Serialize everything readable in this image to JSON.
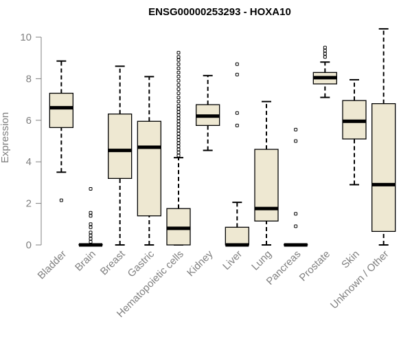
{
  "colors": {
    "box_fill": "#EEE8D2",
    "box_stroke": "#000000",
    "axis": "#808080",
    "label": "#808080",
    "title": "#000000"
  },
  "chart_data": {
    "type": "boxplot",
    "title": "ENSG00000253293 - HOXA10",
    "xlabel": "",
    "ylabel": "Expression",
    "ylim": [
      0,
      10.5
    ],
    "yticks": [
      "0",
      "2",
      "4",
      "6",
      "8",
      "10"
    ],
    "categories": [
      "Bladder",
      "Brain",
      "Breast",
      "Gastric",
      "Hematopoietic cells",
      "Kidney",
      "Liver",
      "Lung",
      "Pancreas",
      "Prostate",
      "Skin",
      "Unknown / Other"
    ],
    "boxes": [
      {
        "category": "Bladder",
        "lower_whisker": 3.5,
        "q1": 5.65,
        "median": 6.6,
        "q3": 7.3,
        "upper_whisker": 8.85,
        "outliers": [
          2.15
        ]
      },
      {
        "category": "Brain",
        "lower_whisker": 0,
        "q1": 0,
        "median": 0,
        "q3": 0.02,
        "upper_whisker": 0.05,
        "outliers": [
          0.15,
          0.3,
          0.45,
          0.6,
          0.85,
          1.0,
          1.4,
          1.55,
          2.7
        ]
      },
      {
        "category": "Breast",
        "lower_whisker": 0,
        "q1": 3.2,
        "median": 4.55,
        "q3": 6.3,
        "upper_whisker": 8.6,
        "outliers": []
      },
      {
        "category": "Gastric",
        "lower_whisker": 0,
        "q1": 1.4,
        "median": 4.7,
        "q3": 5.95,
        "upper_whisker": 8.1,
        "outliers": []
      },
      {
        "category": "Hematopoietic cells",
        "lower_whisker": 0,
        "q1": 0,
        "median": 0.8,
        "q3": 1.75,
        "upper_whisker": 4.2,
        "outliers": [
          4.3,
          4.45,
          4.6,
          4.75,
          4.9,
          5.05,
          5.2,
          5.35,
          5.5,
          5.65,
          5.8,
          5.95,
          6.1,
          6.25,
          6.4,
          6.55,
          6.7,
          6.9,
          7.1,
          7.3,
          7.5,
          7.7,
          7.9,
          8.1,
          8.3,
          8.5,
          8.7,
          8.9,
          9.05,
          9.25
        ]
      },
      {
        "category": "Kidney",
        "lower_whisker": 4.55,
        "q1": 5.75,
        "median": 6.2,
        "q3": 6.75,
        "upper_whisker": 8.15,
        "outliers": []
      },
      {
        "category": "Liver",
        "lower_whisker": 0,
        "q1": 0,
        "median": 0,
        "q3": 0.85,
        "upper_whisker": 2.05,
        "outliers": [
          5.75,
          6.35,
          8.2,
          8.7
        ]
      },
      {
        "category": "Lung",
        "lower_whisker": 0,
        "q1": 1.15,
        "median": 1.75,
        "q3": 4.6,
        "upper_whisker": 6.9,
        "outliers": []
      },
      {
        "category": "Pancreas",
        "lower_whisker": 0,
        "q1": 0,
        "median": 0,
        "q3": 0.02,
        "upper_whisker": 0.05,
        "outliers": [
          0.9,
          1.5,
          5.0,
          5.55
        ]
      },
      {
        "category": "Prostate",
        "lower_whisker": 7.1,
        "q1": 7.75,
        "median": 8.05,
        "q3": 8.3,
        "upper_whisker": 8.8,
        "outliers": [
          9.05,
          9.2,
          9.35,
          9.5
        ]
      },
      {
        "category": "Skin",
        "lower_whisker": 2.9,
        "q1": 5.1,
        "median": 5.95,
        "q3": 6.95,
        "upper_whisker": 7.95,
        "outliers": []
      },
      {
        "category": "Unknown / Other",
        "lower_whisker": 0,
        "q1": 0.65,
        "median": 2.9,
        "q3": 6.8,
        "upper_whisker": 10.4,
        "outliers": []
      }
    ]
  }
}
